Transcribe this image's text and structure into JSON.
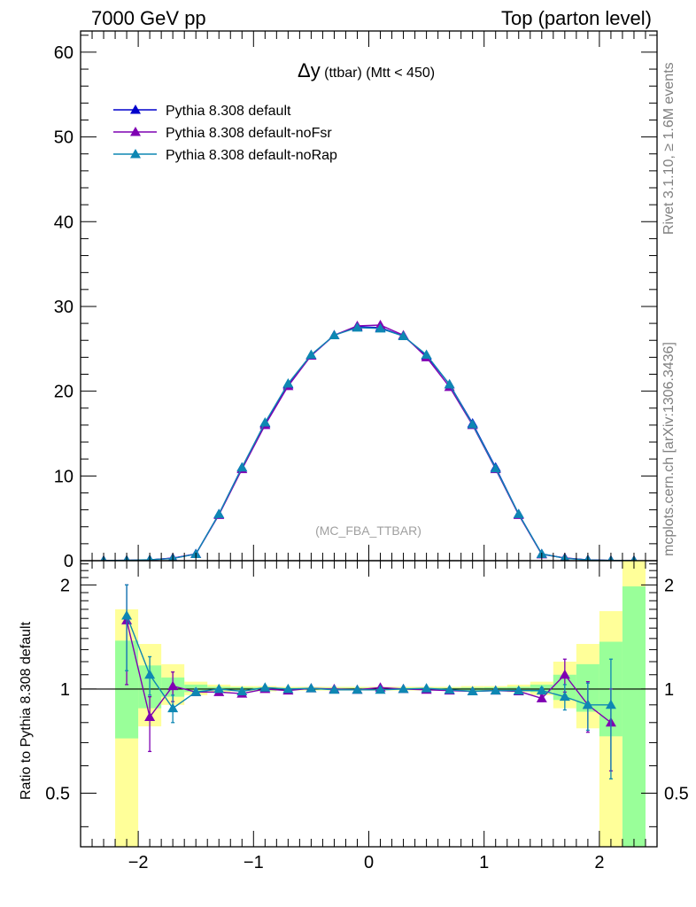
{
  "header": {
    "left": "7000 GeV pp",
    "right": "Top (parton level)"
  },
  "side_labels": {
    "rivet": "Rivet 3.1.10, ≥ 1.6M events",
    "mcplots": "mcplots.cern.ch [arXiv:1306.3436]"
  },
  "chart_data": [
    {
      "type": "line",
      "title_main": "Δy",
      "title_sub": " (ttbar) (Mtt < 450)",
      "analysis_label": "(MC_FBA_TTBAR)",
      "xlim": [
        -2.5,
        2.5
      ],
      "ylim": [
        0,
        62.5
      ],
      "yticks": [
        0,
        10,
        20,
        30,
        40,
        50,
        60
      ],
      "yticklabels": [
        "0",
        "10",
        "20",
        "30",
        "40",
        "50",
        "60"
      ],
      "legend_position": "top-left",
      "x": [
        -2.3,
        -2.1,
        -1.9,
        -1.7,
        -1.5,
        -1.3,
        -1.1,
        -0.9,
        -0.7,
        -0.5,
        -0.3,
        -0.1,
        0.1,
        0.3,
        0.5,
        0.7,
        0.9,
        1.1,
        1.3,
        1.5,
        1.7,
        1.9,
        2.1,
        2.3
      ],
      "series": [
        {
          "name": "Pythia 8.308 default",
          "color": "#0000cc",
          "values": [
            0.01,
            0.03,
            0.1,
            0.3,
            0.8,
            5.5,
            11.0,
            16.2,
            20.8,
            24.2,
            26.6,
            27.6,
            27.5,
            26.5,
            24.2,
            20.8,
            16.2,
            11.0,
            5.5,
            0.8,
            0.3,
            0.1,
            0.03,
            0.01
          ]
        },
        {
          "name": "Pythia 8.308 default-noFsr",
          "color": "#7f00b2",
          "values": [
            0.01,
            0.05,
            0.08,
            0.3,
            0.78,
            5.4,
            10.8,
            16.0,
            20.6,
            24.2,
            26.6,
            27.7,
            27.8,
            26.6,
            24.0,
            20.5,
            16.0,
            10.8,
            5.4,
            0.75,
            0.33,
            0.09,
            0.02,
            0.01
          ]
        },
        {
          "name": "Pythia 8.308 default-noRap",
          "color": "#0e87b3",
          "values": [
            0.01,
            0.05,
            0.11,
            0.26,
            0.78,
            5.5,
            11.0,
            16.3,
            20.9,
            24.3,
            26.6,
            27.5,
            27.4,
            26.5,
            24.3,
            20.8,
            16.1,
            10.9,
            5.5,
            0.8,
            0.28,
            0.09,
            0.03,
            0.01
          ]
        }
      ]
    },
    {
      "type": "line",
      "ylabel": "Ratio to Pythia 8.308 default",
      "xlim": [
        -2.5,
        2.5
      ],
      "ylim": [
        0.35,
        2.35
      ],
      "scale": "log",
      "yticks": [
        0.5,
        1,
        2
      ],
      "yticklabels": [
        "0.5",
        "1",
        "2"
      ],
      "xticks": [
        -2,
        -1,
        0,
        1,
        2
      ],
      "xticklabels": [
        "−2",
        "−1",
        "0",
        "1",
        "2"
      ],
      "reference_line": 1,
      "bands": {
        "bin_edges": [
          -2.2,
          -2.0,
          -1.8,
          -1.6,
          -1.4,
          -1.2,
          -1.0,
          -0.8,
          -0.6,
          -0.4,
          -0.2,
          0.0,
          0.2,
          0.4,
          0.6,
          0.8,
          1.0,
          1.2,
          1.4,
          1.6,
          1.8,
          2.0,
          2.2,
          2.4
        ],
        "yellow": [
          [
            0.35,
            1.7
          ],
          [
            0.78,
            1.35
          ],
          [
            0.9,
            1.18
          ],
          [
            0.96,
            1.05
          ],
          [
            0.98,
            1.03
          ],
          [
            0.985,
            1.02
          ],
          [
            0.985,
            1.02
          ],
          [
            0.99,
            1.015
          ],
          [
            0.99,
            1.015
          ],
          [
            0.99,
            1.015
          ],
          [
            0.99,
            1.015
          ],
          [
            0.99,
            1.015
          ],
          [
            0.99,
            1.015
          ],
          [
            0.99,
            1.015
          ],
          [
            0.99,
            1.015
          ],
          [
            0.985,
            1.02
          ],
          [
            0.985,
            1.02
          ],
          [
            0.98,
            1.03
          ],
          [
            0.96,
            1.05
          ],
          [
            0.88,
            1.2
          ],
          [
            0.77,
            1.35
          ],
          [
            0.35,
            1.68
          ],
          [
            0.35,
            2.35
          ]
        ],
        "green": [
          [
            0.72,
            1.38
          ],
          [
            0.88,
            1.17
          ],
          [
            0.95,
            1.08
          ],
          [
            0.98,
            1.03
          ],
          [
            0.99,
            1.015
          ],
          [
            0.99,
            1.012
          ],
          [
            0.99,
            1.01
          ],
          [
            0.995,
            1.008
          ],
          [
            0.995,
            1.008
          ],
          [
            0.995,
            1.008
          ],
          [
            0.995,
            1.008
          ],
          [
            0.995,
            1.008
          ],
          [
            0.995,
            1.008
          ],
          [
            0.995,
            1.008
          ],
          [
            0.995,
            1.008
          ],
          [
            0.99,
            1.01
          ],
          [
            0.99,
            1.012
          ],
          [
            0.99,
            1.015
          ],
          [
            0.98,
            1.03
          ],
          [
            0.93,
            1.1
          ],
          [
            0.86,
            1.18
          ],
          [
            0.73,
            1.37
          ],
          [
            0.35,
            1.98
          ]
        ]
      },
      "x": [
        -2.1,
        -1.9,
        -1.7,
        -1.5,
        -1.3,
        -1.1,
        -0.9,
        -0.7,
        -0.5,
        -0.3,
        -0.1,
        0.1,
        0.3,
        0.5,
        0.7,
        0.9,
        1.1,
        1.3,
        1.5,
        1.7,
        1.9,
        2.1
      ],
      "series": [
        {
          "name": "Pythia 8.308 default-noFsr",
          "color": "#7f00b2",
          "values": [
            1.58,
            0.83,
            1.02,
            0.98,
            0.98,
            0.97,
            1.0,
            0.99,
            1.005,
            1.0,
            0.995,
            1.01,
            1.0,
            0.995,
            0.99,
            0.985,
            0.99,
            0.985,
            0.94,
            1.1,
            0.9,
            0.8
          ],
          "err_low": [
            0.55,
            0.17,
            0.1,
            0.02,
            0.01,
            0.01,
            0.01,
            0.01,
            0.005,
            0.005,
            0.005,
            0.005,
            0.005,
            0.005,
            0.01,
            0.01,
            0.01,
            0.01,
            0.02,
            0.12,
            0.15,
            0.22
          ],
          "err_high": [
            0.42,
            0.12,
            0.1,
            0.02,
            0.01,
            0.01,
            0.01,
            0.01,
            0.005,
            0.005,
            0.005,
            0.005,
            0.005,
            0.005,
            0.01,
            0.01,
            0.01,
            0.01,
            0.02,
            0.12,
            0.15,
            0.2
          ]
        },
        {
          "name": "Pythia 8.308 default-noRap",
          "color": "#0e87b3",
          "values": [
            1.63,
            1.1,
            0.88,
            0.98,
            1.0,
            0.985,
            1.01,
            1.0,
            1.005,
            0.995,
            0.995,
            0.995,
            1.0,
            1.005,
            0.995,
            0.985,
            0.99,
            0.99,
            0.99,
            0.95,
            0.9,
            0.9
          ],
          "err_low": [
            0.5,
            0.14,
            0.08,
            0.02,
            0.01,
            0.01,
            0.01,
            0.01,
            0.005,
            0.005,
            0.005,
            0.005,
            0.005,
            0.005,
            0.01,
            0.01,
            0.01,
            0.01,
            0.02,
            0.08,
            0.14,
            0.35
          ],
          "err_high": [
            0.37,
            0.14,
            0.08,
            0.02,
            0.01,
            0.01,
            0.01,
            0.01,
            0.005,
            0.005,
            0.005,
            0.005,
            0.005,
            0.005,
            0.01,
            0.01,
            0.01,
            0.01,
            0.02,
            0.08,
            0.14,
            0.32
          ]
        }
      ]
    }
  ]
}
